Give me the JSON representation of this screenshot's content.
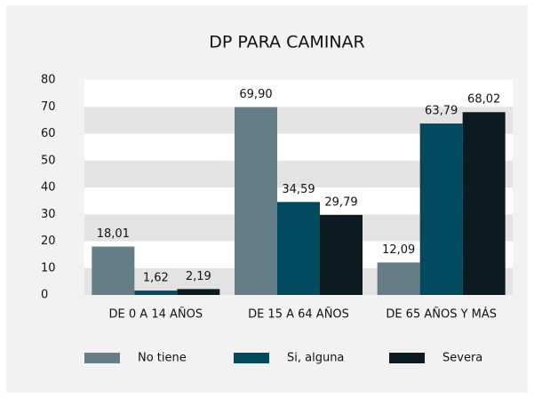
{
  "chart_data": {
    "type": "bar",
    "title": "DP PARA CAMINAR",
    "categories": [
      "DE 0 A 14 AÑOS",
      "DE 15 A 64 AÑOS",
      "DE 65 AÑOS Y MÁS"
    ],
    "series": [
      {
        "name": "No tiene",
        "color": "#647d87",
        "values": [
          18.01,
          69.9,
          12.09
        ],
        "value_labels": [
          "18,01",
          "69,90",
          "12,09"
        ]
      },
      {
        "name": "Si, alguna",
        "color": "#004a5f",
        "values": [
          1.62,
          34.59,
          63.79
        ],
        "value_labels": [
          "1,62",
          "34,59",
          "63,79"
        ]
      },
      {
        "name": "Severa",
        "color": "#0b1b21",
        "values": [
          2.19,
          29.79,
          68.02
        ],
        "value_labels": [
          "2,19",
          "29,79",
          "68,02"
        ]
      }
    ],
    "ylim": [
      0,
      80
    ],
    "yticks": [
      0,
      10,
      20,
      30,
      40,
      50,
      60,
      70,
      80
    ],
    "grid": true,
    "legend": "bottom"
  }
}
